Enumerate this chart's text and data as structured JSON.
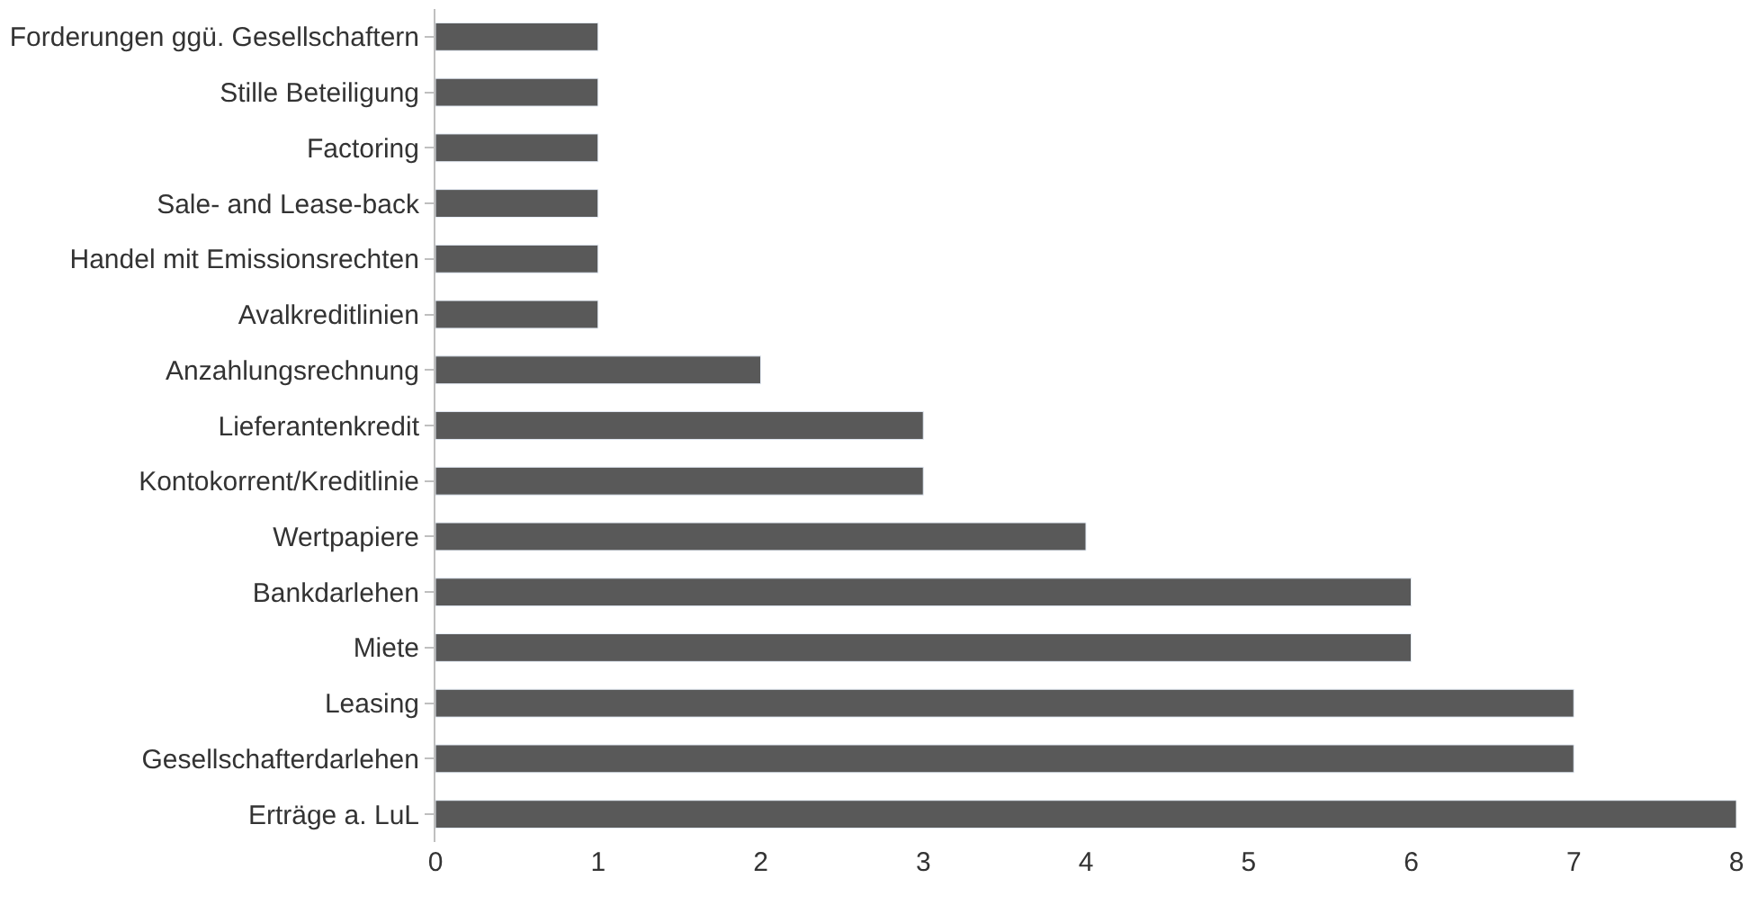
{
  "chart_data": {
    "type": "bar",
    "orientation": "horizontal",
    "categories": [
      "Forderungen ggü. Gesellschaftern",
      "Stille Beteiligung",
      "Factoring",
      "Sale- and Lease-back",
      "Handel mit Emissionsrechten",
      "Avalkreditlinien",
      "Anzahlungsrechnung",
      "Lieferantenkredit",
      "Kontokorrent/Kreditlinie",
      "Wertpapiere",
      "Bankdarlehen",
      "Miete",
      "Leasing",
      "Gesellschafterdarlehen",
      "Erträge a. LuL"
    ],
    "values": [
      1,
      1,
      1,
      1,
      1,
      1,
      2,
      3,
      3,
      4,
      6,
      6,
      7,
      7,
      8
    ],
    "color": "#595959",
    "xlim": [
      0,
      8
    ],
    "xticks": [
      0,
      1,
      2,
      3,
      4,
      5,
      6,
      7,
      8
    ]
  }
}
